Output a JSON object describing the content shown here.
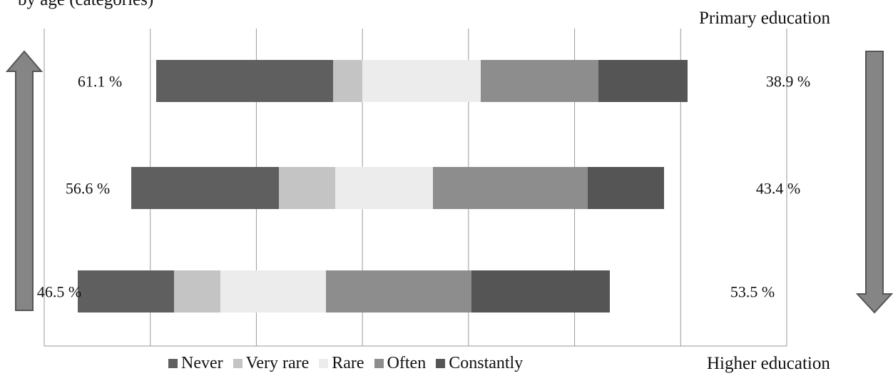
{
  "captions": {
    "top_partial": "by age (categories)",
    "top_right": "Primary education",
    "bottom_right": "Higher education"
  },
  "colors": {
    "Never": "#5f5f5f",
    "Very rare": "#c4c4c4",
    "Rare": "#ececec",
    "Often": "#8d8d8d",
    "Constantly": "#555555",
    "gridline": "#999999",
    "arrow_fill": "#858585",
    "arrow_stroke": "#555555"
  },
  "chart_data": {
    "type": "bar",
    "orientation": "horizontal",
    "stacked": true,
    "grid": true,
    "legend_position": "bottom",
    "categories": [
      "",
      "",
      ""
    ],
    "series": [
      {
        "name": "Never",
        "values": [
          24.8,
          20.7,
          13.5
        ]
      },
      {
        "name": "Very rare",
        "values": [
          4.1,
          7.9,
          6.5
        ]
      },
      {
        "name": "Rare",
        "values": [
          16.6,
          13.7,
          14.8
        ]
      },
      {
        "name": "Often",
        "values": [
          16.5,
          21.7,
          20.4
        ]
      },
      {
        "name": "Constantly",
        "values": [
          12.5,
          10.7,
          19.4
        ]
      }
    ],
    "offsets": [
      15.7,
      12.2,
      4.7
    ],
    "left_labels": [
      "61.1 %",
      "56.6 %",
      "46.5 %"
    ],
    "right_labels": [
      "38.9 %",
      "43.4 %",
      "53.5 %"
    ],
    "xlim": [
      0,
      104.1
    ]
  }
}
